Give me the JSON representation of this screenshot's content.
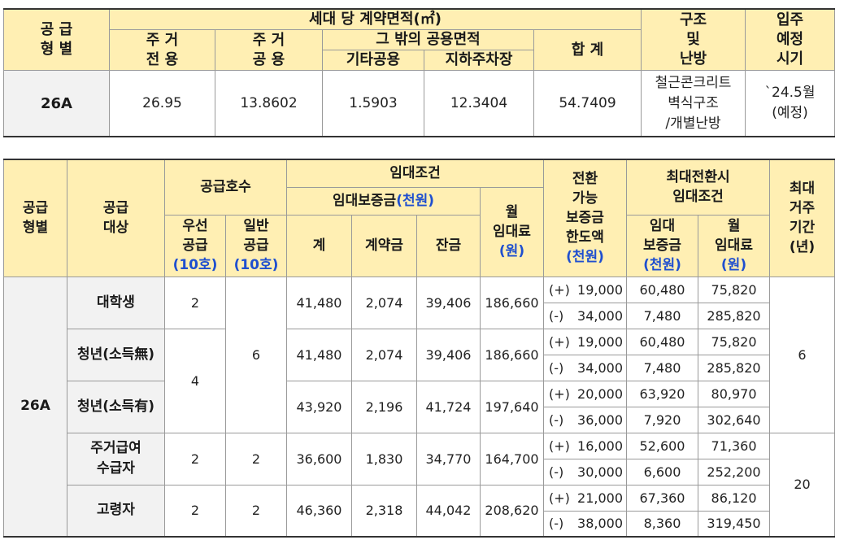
{
  "area_table": {
    "headers": {
      "type": "공 급\n형 별",
      "area_group": "세대 당 계약면적(㎡)",
      "exclusive": "주 거\n전 용",
      "common": "주 거\n공 용",
      "other_common": "그 밖의 공용면적",
      "other_common_misc": "기타공용",
      "parking": "지하주차장",
      "total": "합 계",
      "structure": "구조\n및\n난방",
      "move_in": "입주\n예정\n시기"
    },
    "row": {
      "type": "26A",
      "exclusive": "26.95",
      "common": "13.8602",
      "other_common_misc": "1.5903",
      "parking": "12.3404",
      "total": "54.7409",
      "structure": "철근콘크리트\n벽식구조\n/개별난방",
      "move_in": "`24.5월\n(예정)"
    }
  },
  "rent_table": {
    "headers": {
      "type": "공급\n형별",
      "target": "공급\n대상",
      "supply_count": "공급호수",
      "priority": "우선\n공급",
      "priority_unit": "(10호)",
      "general": "일반\n공급",
      "general_unit": "(10호)",
      "rent_terms": "임대조건",
      "deposit": "임대보증금",
      "unit_thousand": "(천원)",
      "deposit_total": "계",
      "contract_fee": "계약금",
      "balance": "잔금",
      "monthly_rent": "월\n임대료",
      "unit_won": "(원)",
      "conversion": "전환\n가능\n보증금\n한도액",
      "max_conversion": "최대전환시\n임대조건",
      "max_deposit": "임대\n보증금",
      "max_monthly": "월\n임대료",
      "max_period": "최대\n거주\n기간\n(년)"
    },
    "type": "26A",
    "general_shared_1": "6",
    "youth_priority": "4",
    "period_1": "6",
    "period_2": "20",
    "groups": [
      {
        "target": "대학생",
        "priority": "2",
        "general": "",
        "deposit_total": "41,480",
        "contract_fee": "2,074",
        "balance": "39,406",
        "monthly_rent": "186,660",
        "conversions": [
          {
            "sign": "(+)",
            "amount": "19,000",
            "max_deposit": "60,480",
            "max_monthly": "75,820"
          },
          {
            "sign": "(-)",
            "amount": "34,000",
            "max_deposit": "7,480",
            "max_monthly": "285,820"
          }
        ]
      },
      {
        "target": "청년(소득無)",
        "priority": "",
        "general": "",
        "deposit_total": "41,480",
        "contract_fee": "2,074",
        "balance": "39,406",
        "monthly_rent": "186,660",
        "conversions": [
          {
            "sign": "(+)",
            "amount": "19,000",
            "max_deposit": "60,480",
            "max_monthly": "75,820"
          },
          {
            "sign": "(-)",
            "amount": "34,000",
            "max_deposit": "7,480",
            "max_monthly": "285,820"
          }
        ]
      },
      {
        "target": "청년(소득有)",
        "priority": "",
        "general": "",
        "deposit_total": "43,920",
        "contract_fee": "2,196",
        "balance": "41,724",
        "monthly_rent": "197,640",
        "conversions": [
          {
            "sign": "(+)",
            "amount": "20,000",
            "max_deposit": "63,920",
            "max_monthly": "80,970"
          },
          {
            "sign": "(-)",
            "amount": "36,000",
            "max_deposit": "7,920",
            "max_monthly": "302,640"
          }
        ]
      },
      {
        "target": "주거급여\n수급자",
        "priority": "2",
        "general": "2",
        "deposit_total": "36,600",
        "contract_fee": "1,830",
        "balance": "34,770",
        "monthly_rent": "164,700",
        "conversions": [
          {
            "sign": "(+)",
            "amount": "16,000",
            "max_deposit": "52,600",
            "max_monthly": "71,360"
          },
          {
            "sign": "(-)",
            "amount": "30,000",
            "max_deposit": "6,600",
            "max_monthly": "252,200"
          }
        ]
      },
      {
        "target": "고령자",
        "priority": "2",
        "general": "2",
        "deposit_total": "46,360",
        "contract_fee": "2,318",
        "balance": "44,042",
        "monthly_rent": "208,620",
        "conversions": [
          {
            "sign": "(+)",
            "amount": "21,000",
            "max_deposit": "67,360",
            "max_monthly": "86,120"
          },
          {
            "sign": "(-)",
            "amount": "38,000",
            "max_deposit": "8,360",
            "max_monthly": "319,450"
          }
        ]
      }
    ]
  }
}
